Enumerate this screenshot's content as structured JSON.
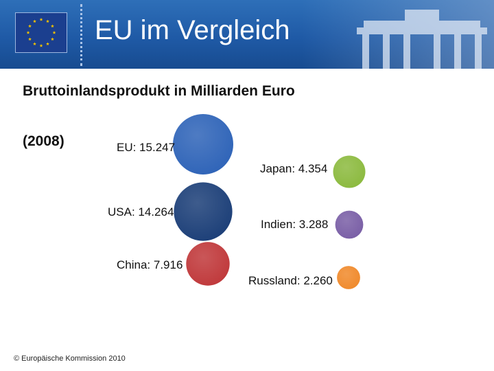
{
  "header": {
    "title": "EU im Vergleich"
  },
  "chart_data": {
    "type": "bubble",
    "title": "Bruttoinlandsprodukt in Milliarden Euro",
    "subtitle": "(2008)",
    "points": [
      {
        "name": "EU",
        "label": "EU: 15.247",
        "value": 15247,
        "color": "#2f64b8"
      },
      {
        "name": "USA",
        "label": "USA: 14.264",
        "value": 14264,
        "color": "#1c3f78"
      },
      {
        "name": "China",
        "label": "China: 7.916",
        "value": 7916,
        "color": "#c0393b"
      },
      {
        "name": "Japan",
        "label": "Japan: 4.354",
        "value": 4354,
        "color": "#8cba3f"
      },
      {
        "name": "Indien",
        "label": "Indien: 3.288",
        "value": 3288,
        "color": "#7a5fa6"
      },
      {
        "name": "Russland",
        "label": "Russland: 2.260",
        "value": 2260,
        "color": "#f08a2c"
      }
    ]
  },
  "footer": {
    "copyright": "© Europäische Kommission 2010"
  }
}
